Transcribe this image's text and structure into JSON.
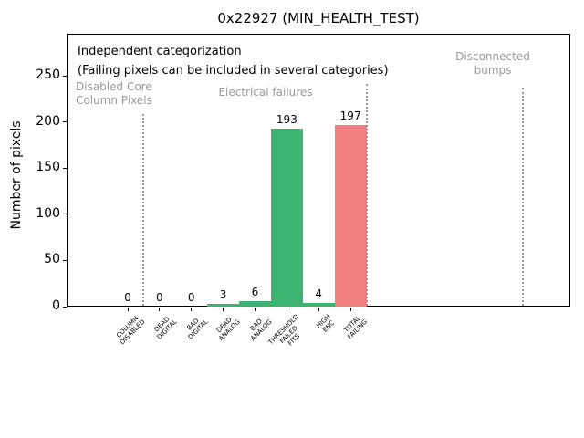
{
  "title": "0x22927 (MIN_HEALTH_TEST)",
  "annotation": {
    "line1": "Independent categorization",
    "line2": "(Failing pixels can be included in several categories)"
  },
  "sections": {
    "disabled_core": {
      "line1": "Disabled Core",
      "line2": "Column Pixels"
    },
    "electrical": {
      "label": "Electrical failures"
    },
    "disconnected": {
      "line1": "Disconnected",
      "line2": "bumps"
    }
  },
  "chart_data": {
    "type": "bar",
    "title": "0x22927 (MIN_HEALTH_TEST)",
    "xlabel": "",
    "ylabel": "Number of pixels",
    "yticks": [
      0,
      50,
      100,
      150,
      200,
      250
    ],
    "ylim": [
      0,
      296
    ],
    "grid": false,
    "legend": "none",
    "categories": [
      [
        "COLUMN",
        "DISABLED"
      ],
      [
        "DEAD",
        "DIGITAL"
      ],
      [
        "BAD",
        "DIGITAL"
      ],
      [
        "DEAD",
        "ANALOG"
      ],
      [
        "BAD",
        "ANALOG"
      ],
      [
        "THRESHOLD",
        "FAILED",
        "FITS"
      ],
      [
        "HIGH",
        "ENC"
      ],
      [
        "TOTAL",
        "FAILING"
      ]
    ],
    "values": [
      0,
      0,
      0,
      3,
      6,
      193,
      4,
      197
    ],
    "bar_colors": [
      "green",
      "green",
      "green",
      "green",
      "green",
      "green",
      "green",
      "red"
    ],
    "palette": {
      "green": "#3cb371",
      "red": "#f08080",
      "gray_text": "#999999",
      "separator": "#999999"
    },
    "separators": [
      {
        "x": 0.5,
        "top": 125
      },
      {
        "x": 7.5,
        "top": 92
      },
      {
        "x": 12.42,
        "top": 96
      }
    ],
    "section_annotations": [
      "Disabled Core Column Pixels",
      "Electrical failures",
      "Disconnected bumps"
    ]
  }
}
